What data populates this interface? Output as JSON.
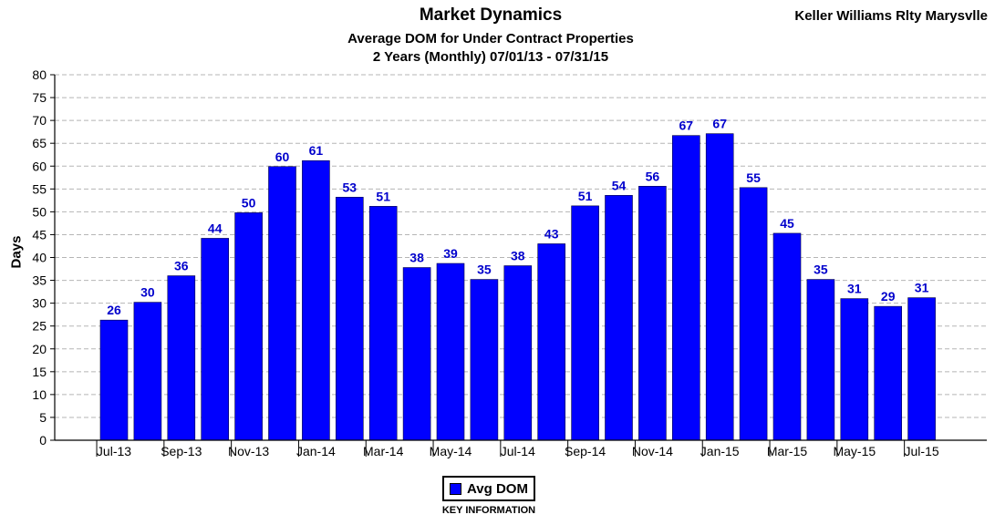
{
  "brand": "Keller Williams Rlty Marysvlle",
  "legend": {
    "label": "Avg DOM",
    "caption": "KEY INFORMATION"
  },
  "chart_data": {
    "type": "bar",
    "title": "Market Dynamics",
    "subtitle": [
      "Average DOM for Under Contract Properties",
      "2 Years (Monthly) 07/01/13 - 07/31/15"
    ],
    "xlabel": "",
    "ylabel": "Days",
    "ylim": [
      0,
      80
    ],
    "yticks": [
      0,
      5,
      10,
      15,
      20,
      25,
      30,
      35,
      40,
      45,
      50,
      55,
      60,
      65,
      70,
      75,
      80
    ],
    "grid": true,
    "bar_color": "#0000ff",
    "label_color": "#0000cc",
    "categories": [
      "Jul-13",
      "Aug-13",
      "Sep-13",
      "Oct-13",
      "Nov-13",
      "Dec-13",
      "Jan-14",
      "Feb-14",
      "Mar-14",
      "Apr-14",
      "May-14",
      "Jun-14",
      "Jul-14",
      "Aug-14",
      "Sep-14",
      "Oct-14",
      "Nov-14",
      "Dec-14",
      "Jan-15",
      "Feb-15",
      "Mar-15",
      "Apr-15",
      "May-15",
      "Jun-15",
      "Jul-15"
    ],
    "tick_labels": [
      "Jul-13",
      "Sep-13",
      "Nov-13",
      "Jan-14",
      "Mar-14",
      "May-14",
      "Jul-14",
      "Sep-14",
      "Nov-14",
      "Jan-15",
      "Mar-15",
      "May-15",
      "Jul-15"
    ],
    "series": [
      {
        "name": "Avg DOM",
        "values": [
          26.3,
          30.2,
          36,
          44.2,
          49.8,
          59.9,
          61.2,
          53.2,
          51.2,
          37.8,
          38.7,
          35.2,
          38.2,
          43,
          51.3,
          53.6,
          55.6,
          66.7,
          67.1,
          55.3,
          45.3,
          35.2,
          31,
          29.3,
          31.2
        ],
        "labels": [
          "26",
          "30",
          "36",
          "44",
          "50",
          "60",
          "61",
          "53",
          "51",
          "38",
          "39",
          "35",
          "38",
          "43",
          "51",
          "54",
          "56",
          "67",
          "67",
          "55",
          "45",
          "35",
          "31",
          "29",
          "31"
        ]
      }
    ]
  }
}
